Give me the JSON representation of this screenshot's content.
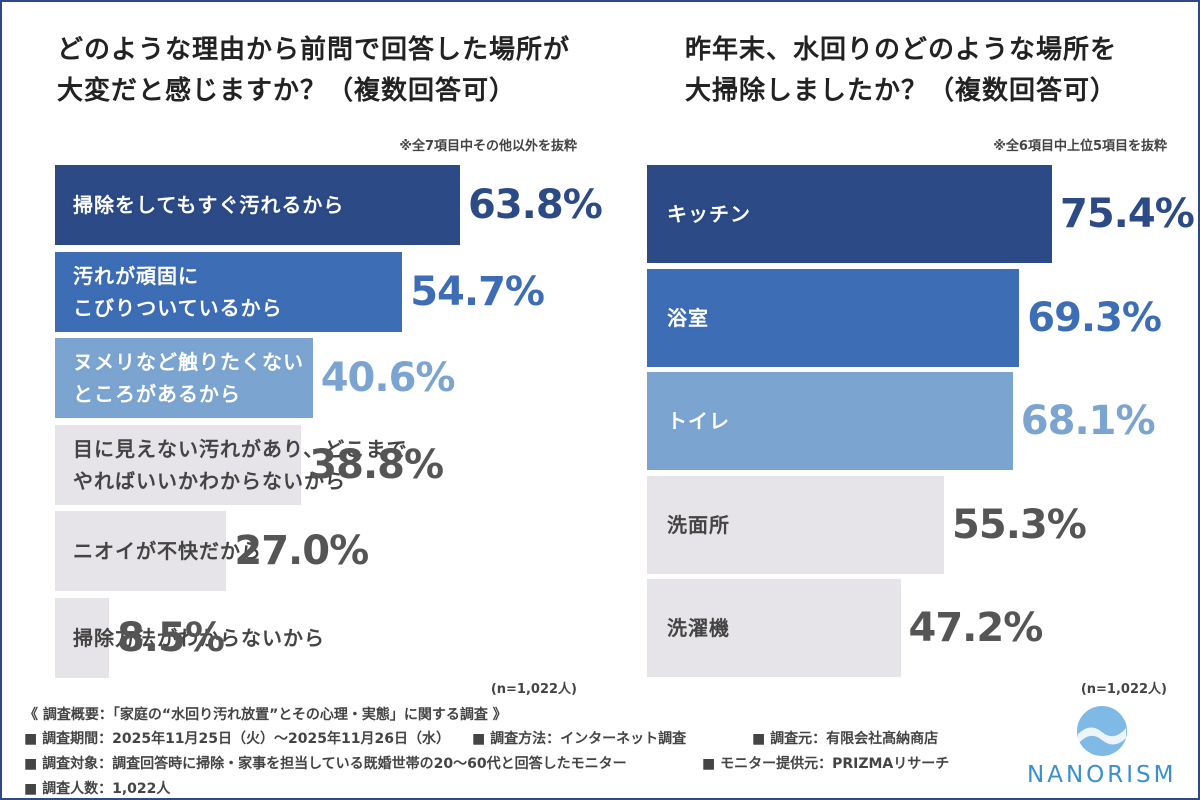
{
  "chart_data": [
    {
      "type": "bar",
      "orientation": "horizontal",
      "title": "どのような理由から前問で回答した場所が\n大変だと感じますか？（複数回答可）",
      "note": "※全7項目中その他以外を抜粋",
      "sample_label": "(n=1,022人)",
      "categories": [
        "掃除をしてもすぐ汚れるから",
        "汚れが頑固に\nこびりついているから",
        "ヌメリなど触りたくない\nところがあるから",
        "目に見えない汚れがあり、どこまで\nやればいいかわからないから",
        "ニオイが不快だから",
        "掃除方法がわからないから"
      ],
      "values": [
        63.8,
        54.7,
        40.6,
        38.8,
        27.0,
        8.5
      ],
      "value_labels": [
        "63.8%",
        "54.7%",
        "40.6%",
        "38.8%",
        "27.0%",
        "8.5%"
      ],
      "colors": [
        "#2b4a86",
        "#3d6db5",
        "#7ba4d0",
        "#e6e4e8",
        "#e6e4e8",
        "#e6e4e8"
      ],
      "label_colors": [
        "#ffffff",
        "#ffffff",
        "#ffffff",
        "#444444",
        "#444444",
        "#444444"
      ],
      "value_colors": [
        "#2b4a86",
        "#3d6db5",
        "#7ba4d0",
        "#555555",
        "#555555",
        "#555555"
      ]
    },
    {
      "type": "bar",
      "orientation": "horizontal",
      "title": "昨年末、水回りのどのような場所を\n大掃除しましたか？（複数回答可）",
      "note": "※全6項目中上位5項目を抜粋",
      "sample_label": "(n=1,022人)",
      "categories": [
        "キッチン",
        "浴室",
        "トイレ",
        "洗面所",
        "洗濯機"
      ],
      "values": [
        75.4,
        69.3,
        68.1,
        55.3,
        47.2
      ],
      "value_labels": [
        "75.4%",
        "69.3%",
        "68.1%",
        "55.3%",
        "47.2%"
      ],
      "colors": [
        "#2b4a86",
        "#3d6db5",
        "#7ba4d0",
        "#e6e4e8",
        "#e6e4e8"
      ],
      "label_colors": [
        "#ffffff",
        "#ffffff",
        "#ffffff",
        "#444444",
        "#444444"
      ],
      "value_colors": [
        "#2b4a86",
        "#3d6db5",
        "#7ba4d0",
        "#555555",
        "#555555"
      ]
    }
  ],
  "survey": {
    "heading": "《 調査概要：「家庭の“水回り汚れ放置”とその心理・実態」に関する調査 》",
    "items": [
      "■ 調査期間：2025年11月25日（火）～2025年11月26日（水）",
      "■ 調査方法：インターネット調査",
      "■ 調査元：有限会社髙納商店",
      "■ 調査対象：調査回答時に掃除・家事を担当している既婚世帯の20～60代と回答したモニター",
      "■ モニター提供元：PRIZMAリサーチ",
      "■ 調査人数：1,022人"
    ]
  },
  "logo": "NANORISM"
}
